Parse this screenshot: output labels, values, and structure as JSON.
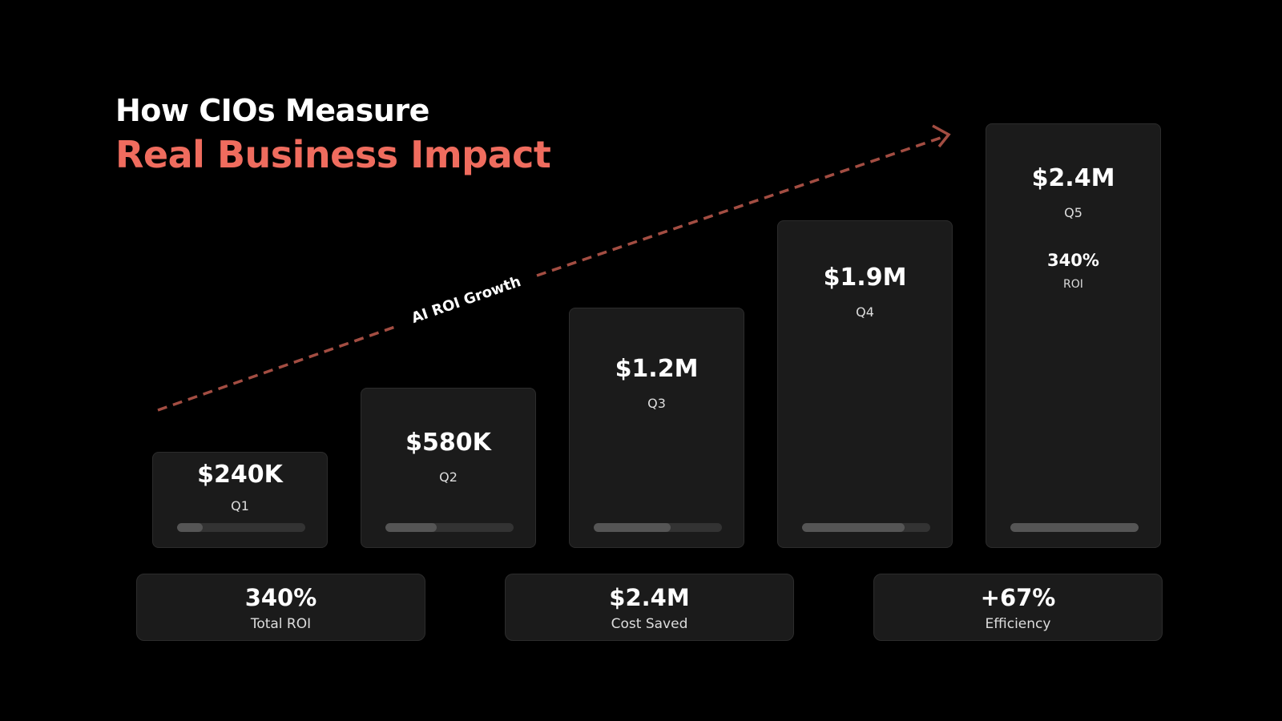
{
  "header": {
    "title": "How CIOs Measure",
    "subtitle": "Real Business Impact"
  },
  "trend_label": "AI ROI Growth",
  "cards": [
    {
      "value": "$240K",
      "label": "Q1"
    },
    {
      "value": "$580K",
      "label": "Q2"
    },
    {
      "value": "$1.2M",
      "label": "Q3"
    },
    {
      "value": "$1.9M",
      "label": "Q4"
    },
    {
      "value": "$2.4M",
      "label": "Q5",
      "extra_value": "340%",
      "extra_label": "ROI"
    }
  ],
  "stats": [
    {
      "value": "340%",
      "label": "Total ROI"
    },
    {
      "value": "$2.4M",
      "label": "Cost Saved"
    },
    {
      "value": "+67%",
      "label": "Efficiency"
    }
  ]
}
